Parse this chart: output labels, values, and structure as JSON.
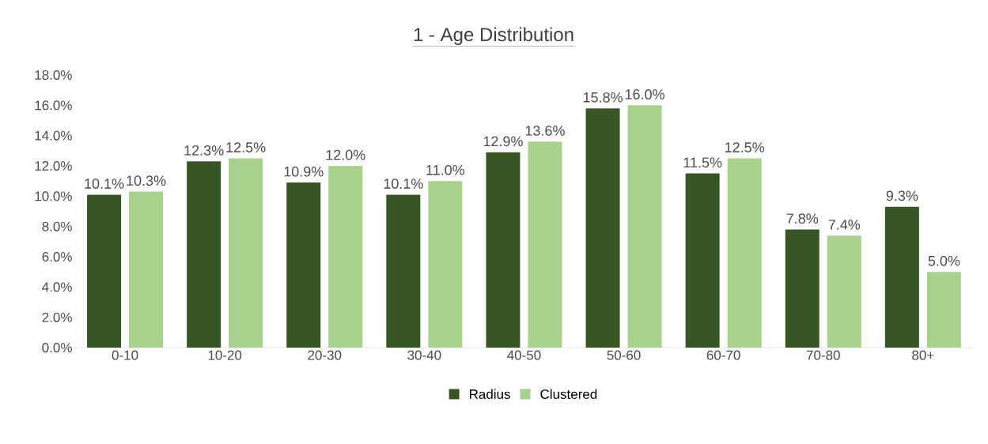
{
  "chart_data": {
    "type": "bar",
    "title": "1 - Age Distribution",
    "categories": [
      "0-10",
      "10-20",
      "20-30",
      "30-40",
      "40-50",
      "50-60",
      "60-70",
      "70-80",
      "80+"
    ],
    "series": [
      {
        "name": "Radius",
        "color": "#375623",
        "values": [
          10.1,
          12.3,
          10.9,
          10.1,
          12.9,
          15.8,
          11.5,
          7.8,
          9.3
        ],
        "value_labels": [
          "10.1%",
          "12.3%",
          "10.9%",
          "10.1%",
          "12.9%",
          "15.8%",
          "11.5%",
          "7.8%",
          "9.3%"
        ]
      },
      {
        "name": "Clustered",
        "color": "#a9d18e",
        "values": [
          10.3,
          12.5,
          12.0,
          11.0,
          13.6,
          16.0,
          12.5,
          7.4,
          5.0
        ],
        "value_labels": [
          "10.3%",
          "12.5%",
          "12.0%",
          "11.0%",
          "13.6%",
          "16.0%",
          "12.5%",
          "7.4%",
          "5.0%"
        ]
      }
    ],
    "ylim": [
      0,
      18
    ],
    "yticks": [
      {
        "value": 0,
        "label": "0.0%"
      },
      {
        "value": 2,
        "label": "2.0%"
      },
      {
        "value": 4,
        "label": "4.0%"
      },
      {
        "value": 6,
        "label": "6.0%"
      },
      {
        "value": 8,
        "label": "8.0%"
      },
      {
        "value": 10,
        "label": "10.0%"
      },
      {
        "value": 12,
        "label": "12.0%"
      },
      {
        "value": 14,
        "label": "14.0%"
      },
      {
        "value": 16,
        "label": "16.0%"
      },
      {
        "value": 18,
        "label": "18.0%"
      }
    ],
    "legend": "bottom",
    "grid": false
  }
}
